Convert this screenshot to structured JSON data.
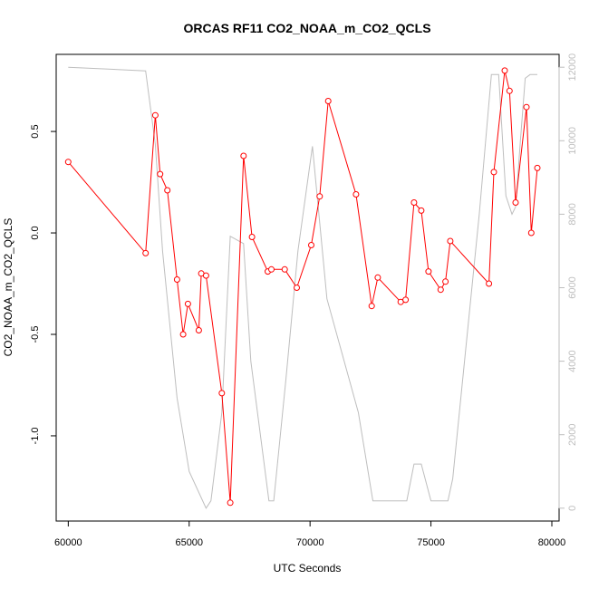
{
  "chart_data": {
    "type": "line",
    "title": "ORCAS RF11 CO2_NOAA_m_CO2_QCLS",
    "xlabel": "UTC Seconds",
    "ylabel": "CO2_NOAA_m_CO2_QCLS",
    "y2label": "",
    "xlim": [
      59500,
      80300
    ],
    "ylim": [
      -1.42,
      0.88
    ],
    "y2lim": [
      -350,
      12350
    ],
    "x_ticks": [
      60000,
      65000,
      70000,
      75000,
      80000
    ],
    "y_ticks": [
      -1.0,
      -0.5,
      0.0,
      0.5
    ],
    "y_tick_labels": [
      "-1.0",
      "-0.5",
      "0.0",
      "0.5"
    ],
    "y2_ticks": [
      0,
      2000,
      4000,
      6000,
      8000,
      10000,
      12000
    ],
    "grid": false,
    "colors": {
      "primary": "#ff0000",
      "secondary": "#bebebe",
      "axis": "#000000",
      "secondary_axis": "#bebebe"
    },
    "series": [
      {
        "axis": "left",
        "style": "line+markers",
        "x": [
          60000,
          63200,
          63600,
          63800,
          64100,
          64500,
          64750,
          64950,
          65400,
          65500,
          65700,
          66350,
          66700,
          67250,
          67600,
          68250,
          68400,
          68950,
          69450,
          70050,
          70400,
          70750,
          71900,
          72550,
          72800,
          73750,
          73950,
          74300,
          74600,
          74900,
          75400,
          75600,
          75800,
          77400,
          77600,
          78050,
          78250,
          78500,
          78950,
          79150,
          79400
        ],
        "y": [
          0.35,
          -0.1,
          0.58,
          0.29,
          0.21,
          -0.23,
          -0.5,
          -0.35,
          -0.48,
          -0.2,
          -0.21,
          -0.79,
          -1.33,
          0.38,
          -0.02,
          -0.19,
          -0.18,
          -0.18,
          -0.27,
          -0.06,
          0.18,
          0.65,
          0.19,
          -0.36,
          -0.22,
          -0.34,
          -0.33,
          0.15,
          0.11,
          -0.19,
          -0.28,
          -0.24,
          -0.04,
          -0.25,
          0.3,
          0.8,
          0.7,
          0.15,
          0.62,
          0.0,
          0.32
        ]
      },
      {
        "axis": "right",
        "style": "line",
        "x": [
          60000,
          63200,
          63600,
          63900,
          64500,
          65000,
          65700,
          65900,
          66350,
          66700,
          67250,
          67550,
          68300,
          68500,
          69000,
          69500,
          70100,
          70700,
          72000,
          72600,
          74000,
          74300,
          74600,
          75000,
          75700,
          75900,
          77000,
          77500,
          77800,
          78100,
          78350,
          78500,
          78700,
          78900,
          79100,
          79400
        ],
        "y": [
          12000,
          11900,
          9900,
          7000,
          3000,
          1000,
          0,
          200,
          2600,
          7400,
          7200,
          4000,
          200,
          200,
          3500,
          7000,
          9850,
          5700,
          2600,
          200,
          200,
          1200,
          1200,
          200,
          200,
          800,
          8000,
          11800,
          11800,
          8500,
          8000,
          8200,
          10000,
          11700,
          11800,
          11800
        ]
      }
    ]
  }
}
